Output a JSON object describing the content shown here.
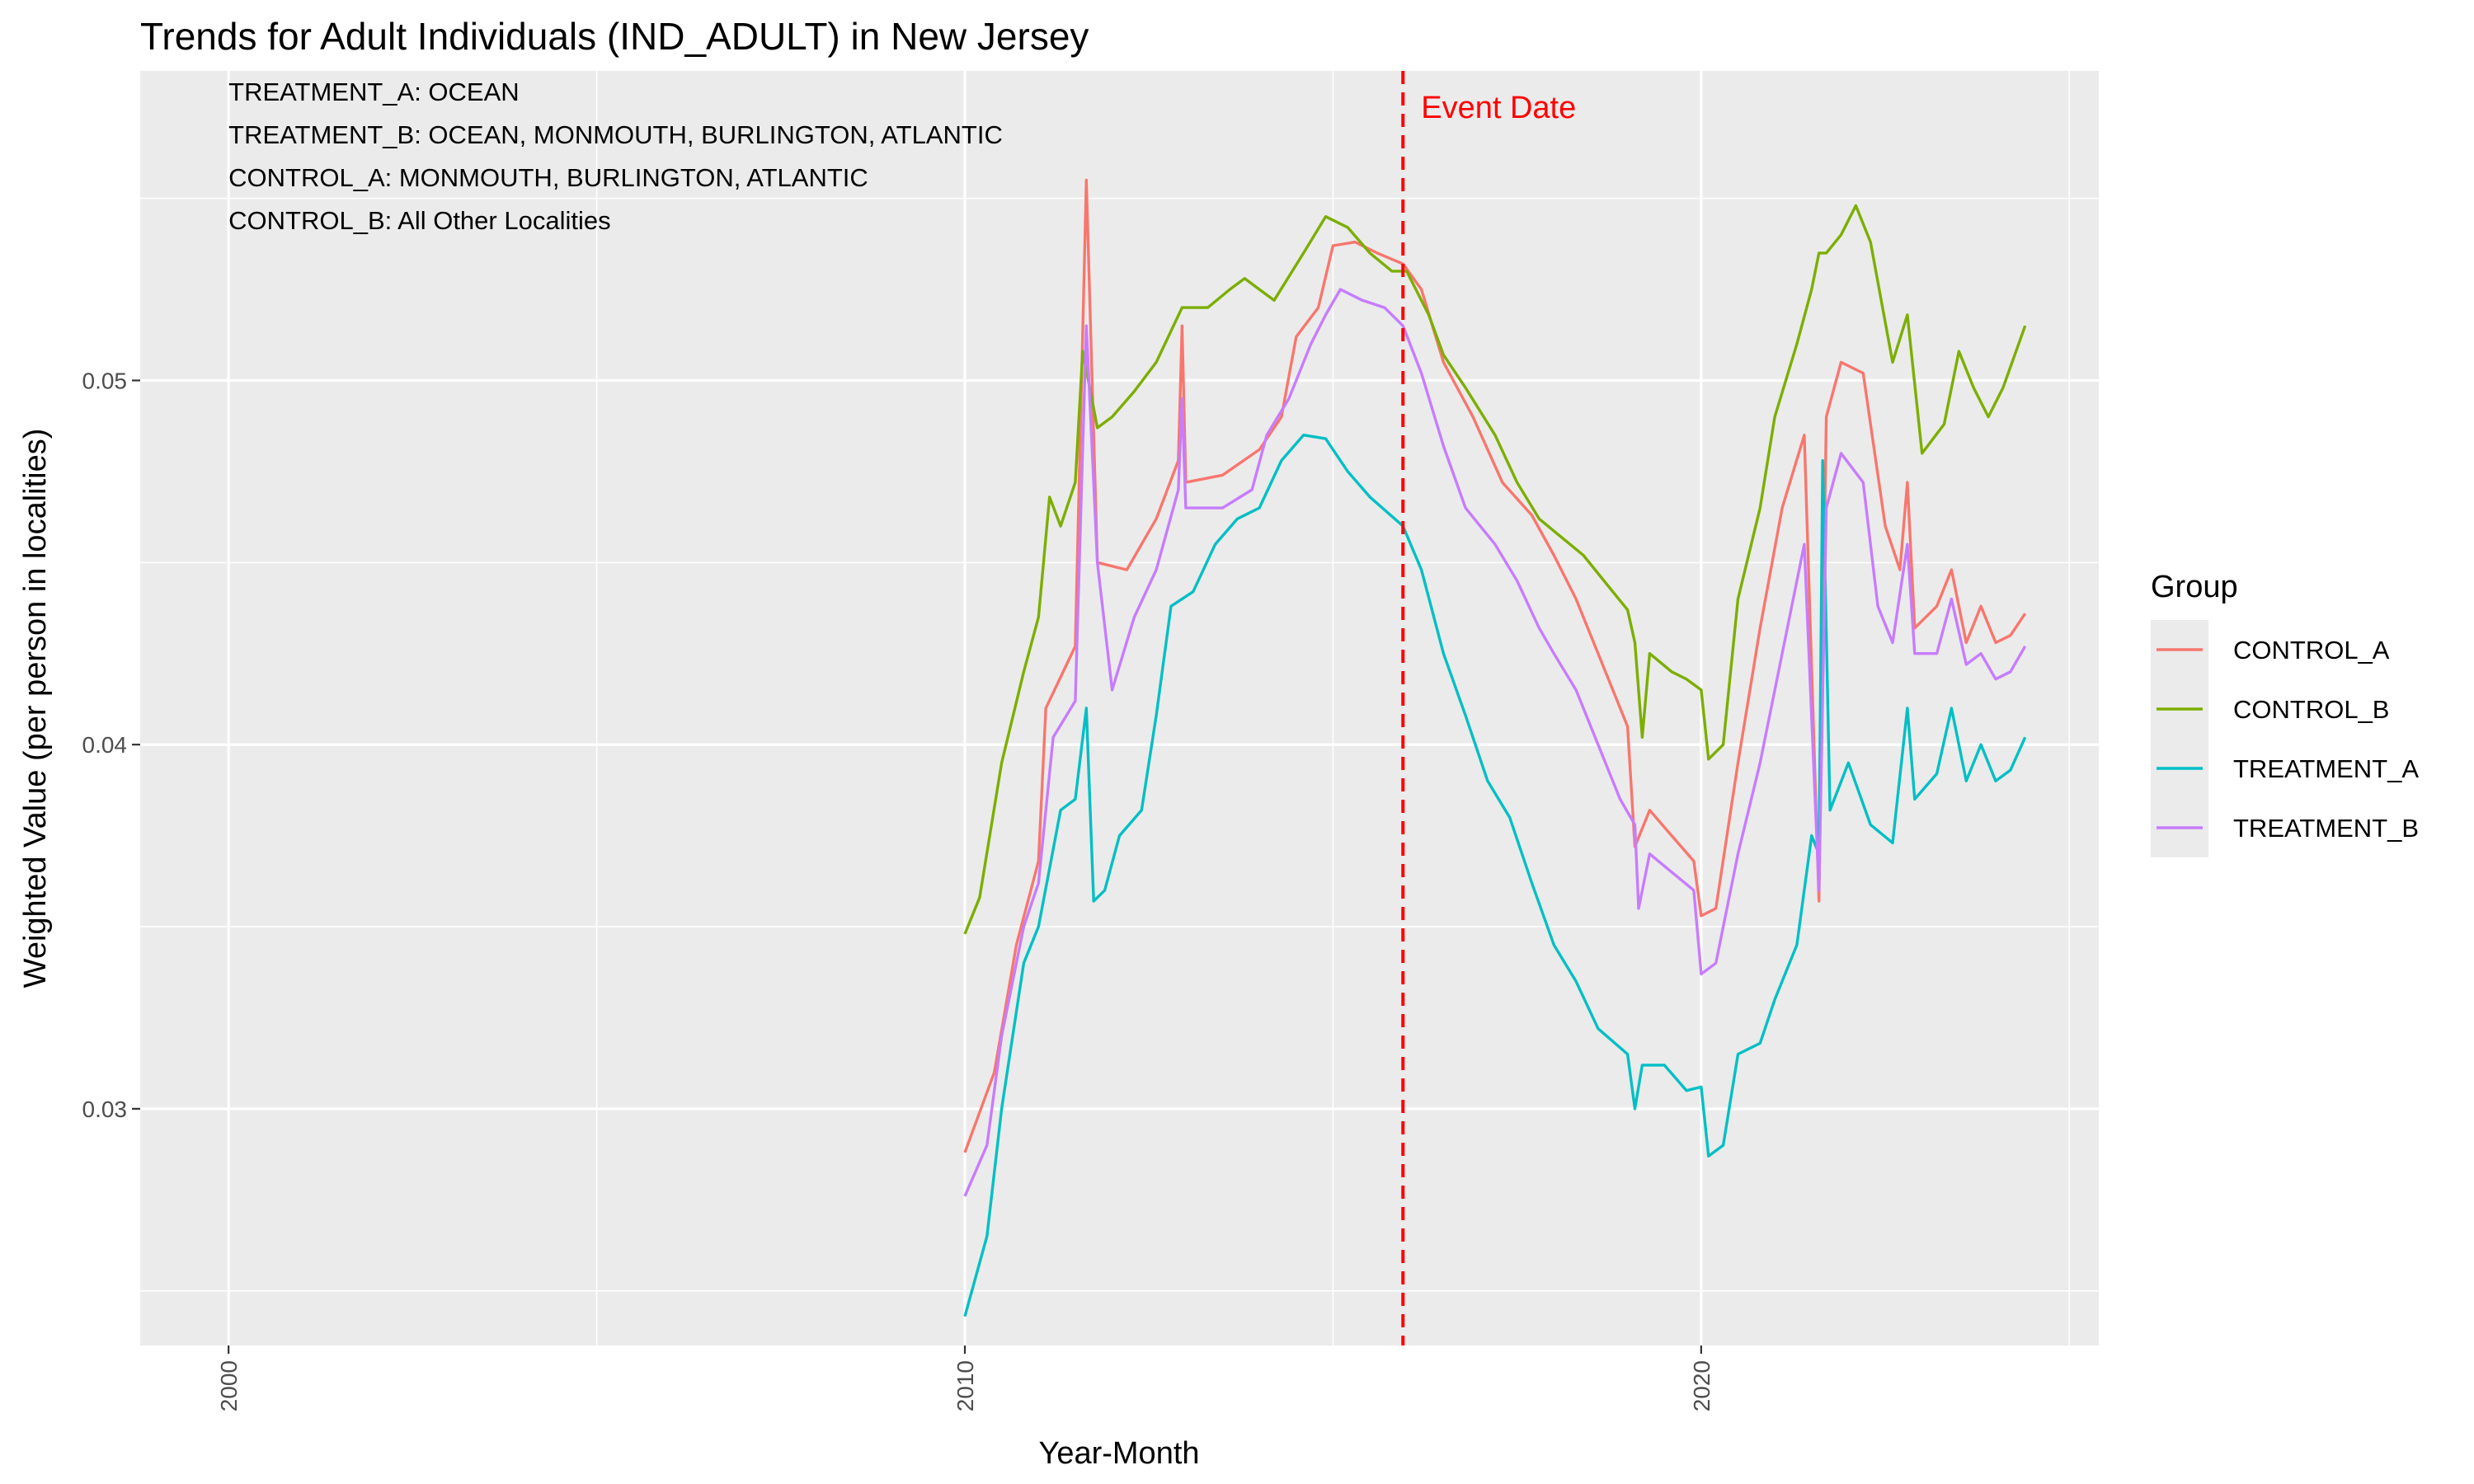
{
  "chart_data": {
    "type": "line",
    "title": "Trends for Adult Individuals (IND_ADULT) in New Jersey",
    "xlabel": "Year-Month",
    "ylabel": "Weighted Value (per person in localities)",
    "xlim": [
      1998.8,
      2025.4
    ],
    "ylim": [
      0.0235,
      0.0585
    ],
    "x_ticks": [
      2000,
      2010,
      2020
    ],
    "y_ticks": [
      0.03,
      0.04,
      0.05
    ],
    "y_tick_labels": [
      "0.03",
      "0.04",
      "0.05"
    ],
    "grid": true,
    "legend": {
      "title": "Group",
      "position": "right",
      "entries": [
        "CONTROL_A",
        "CONTROL_B",
        "TREATMENT_A",
        "TREATMENT_B"
      ]
    },
    "annotations": [
      "TREATMENT_A: OCEAN",
      "TREATMENT_B: OCEAN, MONMOUTH, BURLINGTON, ATLANTIC",
      "CONTROL_A: MONMOUTH, BURLINGTON, ATLANTIC",
      "CONTROL_B: All Other Localities"
    ],
    "event": {
      "x": 2015.95,
      "label": "Event Date",
      "color": "#FF0000"
    },
    "series": [
      {
        "name": "CONTROL_A",
        "color": "#F8766D",
        "points": [
          [
            2010.0,
            0.0288
          ],
          [
            2010.4,
            0.031
          ],
          [
            2010.7,
            0.0345
          ],
          [
            2011.0,
            0.0368
          ],
          [
            2011.1,
            0.041
          ],
          [
            2011.5,
            0.0427
          ],
          [
            2011.65,
            0.0555
          ],
          [
            2011.8,
            0.045
          ],
          [
            2012.2,
            0.0448
          ],
          [
            2012.6,
            0.0462
          ],
          [
            2012.9,
            0.0478
          ],
          [
            2012.95,
            0.0515
          ],
          [
            2013.0,
            0.0472
          ],
          [
            2013.5,
            0.0474
          ],
          [
            2014.0,
            0.0481
          ],
          [
            2014.3,
            0.049
          ],
          [
            2014.5,
            0.0512
          ],
          [
            2014.8,
            0.052
          ],
          [
            2015.0,
            0.0537
          ],
          [
            2015.3,
            0.0538
          ],
          [
            2015.6,
            0.0535
          ],
          [
            2015.95,
            0.0532
          ],
          [
            2016.2,
            0.0525
          ],
          [
            2016.5,
            0.0505
          ],
          [
            2016.9,
            0.049
          ],
          [
            2017.3,
            0.0472
          ],
          [
            2017.7,
            0.0463
          ],
          [
            2018.0,
            0.0452
          ],
          [
            2018.3,
            0.044
          ],
          [
            2018.7,
            0.042
          ],
          [
            2019.0,
            0.0405
          ],
          [
            2019.1,
            0.0372
          ],
          [
            2019.3,
            0.0382
          ],
          [
            2019.6,
            0.0375
          ],
          [
            2019.9,
            0.0368
          ],
          [
            2020.0,
            0.0353
          ],
          [
            2020.2,
            0.0355
          ],
          [
            2020.5,
            0.0395
          ],
          [
            2020.8,
            0.0432
          ],
          [
            2021.1,
            0.0465
          ],
          [
            2021.4,
            0.0485
          ],
          [
            2021.6,
            0.0357
          ],
          [
            2021.7,
            0.049
          ],
          [
            2021.9,
            0.0505
          ],
          [
            2022.2,
            0.0502
          ],
          [
            2022.5,
            0.046
          ],
          [
            2022.7,
            0.0448
          ],
          [
            2022.8,
            0.0472
          ],
          [
            2022.9,
            0.0432
          ],
          [
            2023.2,
            0.0438
          ],
          [
            2023.4,
            0.0448
          ],
          [
            2023.6,
            0.0428
          ],
          [
            2023.8,
            0.0438
          ],
          [
            2024.0,
            0.0428
          ],
          [
            2024.2,
            0.043
          ],
          [
            2024.4,
            0.0436
          ]
        ]
      },
      {
        "name": "CONTROL_B",
        "color": "#7CAE00",
        "points": [
          [
            2010.0,
            0.0348
          ],
          [
            2010.2,
            0.0358
          ],
          [
            2010.5,
            0.0395
          ],
          [
            2010.8,
            0.042
          ],
          [
            2011.0,
            0.0435
          ],
          [
            2011.15,
            0.0468
          ],
          [
            2011.3,
            0.046
          ],
          [
            2011.5,
            0.0472
          ],
          [
            2011.6,
            0.0508
          ],
          [
            2011.8,
            0.0487
          ],
          [
            2012.0,
            0.049
          ],
          [
            2012.3,
            0.0497
          ],
          [
            2012.6,
            0.0505
          ],
          [
            2012.95,
            0.052
          ],
          [
            2013.3,
            0.052
          ],
          [
            2013.6,
            0.0525
          ],
          [
            2013.8,
            0.0528
          ],
          [
            2014.2,
            0.0522
          ],
          [
            2014.6,
            0.0535
          ],
          [
            2014.9,
            0.0545
          ],
          [
            2015.2,
            0.0542
          ],
          [
            2015.5,
            0.0535
          ],
          [
            2015.8,
            0.053
          ],
          [
            2016.0,
            0.053
          ],
          [
            2016.3,
            0.0518
          ],
          [
            2016.5,
            0.0507
          ],
          [
            2016.8,
            0.0498
          ],
          [
            2017.2,
            0.0485
          ],
          [
            2017.5,
            0.0472
          ],
          [
            2017.8,
            0.0462
          ],
          [
            2018.1,
            0.0457
          ],
          [
            2018.4,
            0.0452
          ],
          [
            2018.8,
            0.0442
          ],
          [
            2019.0,
            0.0437
          ],
          [
            2019.1,
            0.0428
          ],
          [
            2019.2,
            0.0402
          ],
          [
            2019.3,
            0.0425
          ],
          [
            2019.6,
            0.042
          ],
          [
            2019.8,
            0.0418
          ],
          [
            2020.0,
            0.0415
          ],
          [
            2020.1,
            0.0396
          ],
          [
            2020.3,
            0.04
          ],
          [
            2020.5,
            0.044
          ],
          [
            2020.8,
            0.0465
          ],
          [
            2021.0,
            0.049
          ],
          [
            2021.3,
            0.051
          ],
          [
            2021.5,
            0.0525
          ],
          [
            2021.6,
            0.0535
          ],
          [
            2021.7,
            0.0535
          ],
          [
            2021.9,
            0.054
          ],
          [
            2022.1,
            0.0548
          ],
          [
            2022.3,
            0.0538
          ],
          [
            2022.6,
            0.0505
          ],
          [
            2022.8,
            0.0518
          ],
          [
            2023.0,
            0.048
          ],
          [
            2023.3,
            0.0488
          ],
          [
            2023.5,
            0.0508
          ],
          [
            2023.7,
            0.0498
          ],
          [
            2023.9,
            0.049
          ],
          [
            2024.1,
            0.0498
          ],
          [
            2024.4,
            0.0515
          ]
        ]
      },
      {
        "name": "TREATMENT_A",
        "color": "#00BFC4",
        "points": [
          [
            2010.0,
            0.0243
          ],
          [
            2010.3,
            0.0265
          ],
          [
            2010.5,
            0.03
          ],
          [
            2010.8,
            0.034
          ],
          [
            2011.0,
            0.035
          ],
          [
            2011.3,
            0.0382
          ],
          [
            2011.5,
            0.0385
          ],
          [
            2011.65,
            0.041
          ],
          [
            2011.75,
            0.0357
          ],
          [
            2011.9,
            0.036
          ],
          [
            2012.1,
            0.0375
          ],
          [
            2012.4,
            0.0382
          ],
          [
            2012.6,
            0.0408
          ],
          [
            2012.8,
            0.0438
          ],
          [
            2013.1,
            0.0442
          ],
          [
            2013.4,
            0.0455
          ],
          [
            2013.7,
            0.0462
          ],
          [
            2014.0,
            0.0465
          ],
          [
            2014.3,
            0.0478
          ],
          [
            2014.6,
            0.0485
          ],
          [
            2014.9,
            0.0484
          ],
          [
            2015.2,
            0.0475
          ],
          [
            2015.5,
            0.0468
          ],
          [
            2015.95,
            0.046
          ],
          [
            2016.2,
            0.0448
          ],
          [
            2016.5,
            0.0425
          ],
          [
            2016.8,
            0.0408
          ],
          [
            2017.1,
            0.039
          ],
          [
            2017.4,
            0.038
          ],
          [
            2017.7,
            0.0362
          ],
          [
            2018.0,
            0.0345
          ],
          [
            2018.3,
            0.0335
          ],
          [
            2018.6,
            0.0322
          ],
          [
            2019.0,
            0.0315
          ],
          [
            2019.1,
            0.03
          ],
          [
            2019.2,
            0.0312
          ],
          [
            2019.5,
            0.0312
          ],
          [
            2019.8,
            0.0305
          ],
          [
            2020.0,
            0.0306
          ],
          [
            2020.1,
            0.0287
          ],
          [
            2020.3,
            0.029
          ],
          [
            2020.5,
            0.0315
          ],
          [
            2020.8,
            0.0318
          ],
          [
            2021.0,
            0.033
          ],
          [
            2021.3,
            0.0345
          ],
          [
            2021.5,
            0.0375
          ],
          [
            2021.6,
            0.037
          ],
          [
            2021.65,
            0.0478
          ],
          [
            2021.75,
            0.0382
          ],
          [
            2022.0,
            0.0395
          ],
          [
            2022.3,
            0.0378
          ],
          [
            2022.6,
            0.0373
          ],
          [
            2022.8,
            0.041
          ],
          [
            2022.9,
            0.0385
          ],
          [
            2023.2,
            0.0392
          ],
          [
            2023.4,
            0.041
          ],
          [
            2023.6,
            0.039
          ],
          [
            2023.8,
            0.04
          ],
          [
            2024.0,
            0.039
          ],
          [
            2024.2,
            0.0393
          ],
          [
            2024.4,
            0.0402
          ]
        ]
      },
      {
        "name": "TREATMENT_B",
        "color": "#C77CFF",
        "points": [
          [
            2010.0,
            0.0276
          ],
          [
            2010.3,
            0.029
          ],
          [
            2010.5,
            0.032
          ],
          [
            2010.8,
            0.035
          ],
          [
            2011.0,
            0.0362
          ],
          [
            2011.2,
            0.0402
          ],
          [
            2011.5,
            0.0412
          ],
          [
            2011.65,
            0.0515
          ],
          [
            2011.8,
            0.045
          ],
          [
            2012.0,
            0.0415
          ],
          [
            2012.3,
            0.0435
          ],
          [
            2012.6,
            0.0448
          ],
          [
            2012.9,
            0.047
          ],
          [
            2012.95,
            0.0495
          ],
          [
            2013.0,
            0.0465
          ],
          [
            2013.5,
            0.0465
          ],
          [
            2013.9,
            0.047
          ],
          [
            2014.1,
            0.0485
          ],
          [
            2014.4,
            0.0495
          ],
          [
            2014.7,
            0.051
          ],
          [
            2014.9,
            0.0518
          ],
          [
            2015.1,
            0.0525
          ],
          [
            2015.4,
            0.0522
          ],
          [
            2015.7,
            0.052
          ],
          [
            2015.95,
            0.0515
          ],
          [
            2016.2,
            0.0502
          ],
          [
            2016.5,
            0.0482
          ],
          [
            2016.8,
            0.0465
          ],
          [
            2017.2,
            0.0455
          ],
          [
            2017.5,
            0.0445
          ],
          [
            2017.8,
            0.0432
          ],
          [
            2018.0,
            0.0425
          ],
          [
            2018.3,
            0.0415
          ],
          [
            2018.6,
            0.04
          ],
          [
            2018.9,
            0.0385
          ],
          [
            2019.1,
            0.0378
          ],
          [
            2019.15,
            0.0355
          ],
          [
            2019.3,
            0.037
          ],
          [
            2019.6,
            0.0365
          ],
          [
            2019.9,
            0.036
          ],
          [
            2020.0,
            0.0337
          ],
          [
            2020.2,
            0.034
          ],
          [
            2020.5,
            0.037
          ],
          [
            2020.8,
            0.0395
          ],
          [
            2021.1,
            0.0425
          ],
          [
            2021.4,
            0.0455
          ],
          [
            2021.6,
            0.036
          ],
          [
            2021.7,
            0.0465
          ],
          [
            2021.9,
            0.048
          ],
          [
            2022.2,
            0.0472
          ],
          [
            2022.4,
            0.0438
          ],
          [
            2022.6,
            0.0428
          ],
          [
            2022.8,
            0.0455
          ],
          [
            2022.9,
            0.0425
          ],
          [
            2023.2,
            0.0425
          ],
          [
            2023.4,
            0.044
          ],
          [
            2023.6,
            0.0422
          ],
          [
            2023.8,
            0.0425
          ],
          [
            2024.0,
            0.0418
          ],
          [
            2024.2,
            0.042
          ],
          [
            2024.4,
            0.0427
          ]
        ]
      }
    ]
  }
}
